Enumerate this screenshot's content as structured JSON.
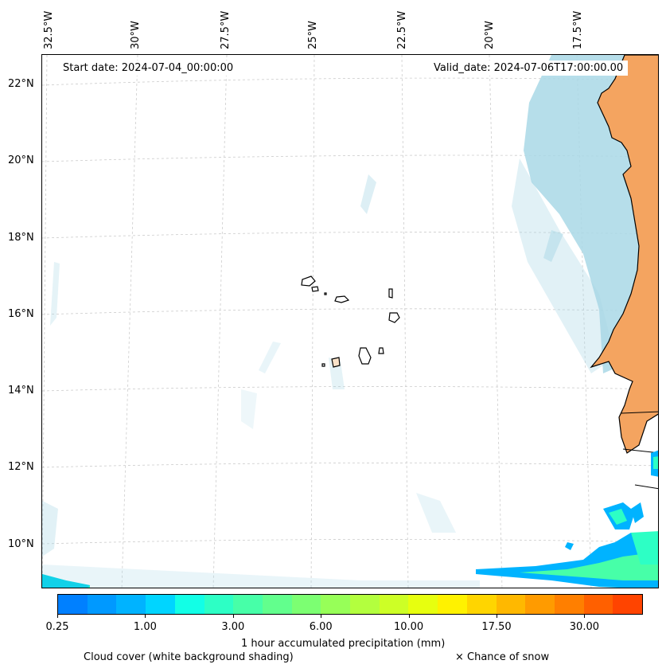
{
  "map": {
    "start_date": "Start date: 2024-07-04_00:00:00",
    "valid_date": "Valid_date: 2024-07-06T17:00:00.00",
    "lon_labels": [
      "32.5°W",
      "30°W",
      "27.5°W",
      "25°W",
      "22.5°W",
      "20°W",
      "17.5°W"
    ],
    "lat_labels": [
      "22°N",
      "20°N",
      "18°N",
      "16°N",
      "14°N",
      "12°N",
      "10°N"
    ],
    "colors": {
      "land": "#f4a460",
      "cloud": "#a9d8e6",
      "coast": "#000000"
    }
  },
  "colorbar": {
    "tick_labels": [
      "0.25",
      "1.00",
      "3.00",
      "6.00",
      "10.00",
      "17.50",
      "30.00"
    ],
    "colors": [
      "#0080ff",
      "#0099ff",
      "#00b3ff",
      "#00d5ff",
      "#12ffe6",
      "#2dffc5",
      "#47ffa8",
      "#62ff8d",
      "#7cff72",
      "#97ff58",
      "#b3ff3e",
      "#cdff26",
      "#e7ff0f",
      "#fff200",
      "#ffd500",
      "#ffb800",
      "#ff9b00",
      "#ff7f00",
      "#ff6000",
      "#ff4400"
    ],
    "label": "1 hour accumulated precipitation (mm)"
  },
  "captions": {
    "cloud_cover": "Cloud cover (white background shading)",
    "snow": "× Chance of snow"
  }
}
